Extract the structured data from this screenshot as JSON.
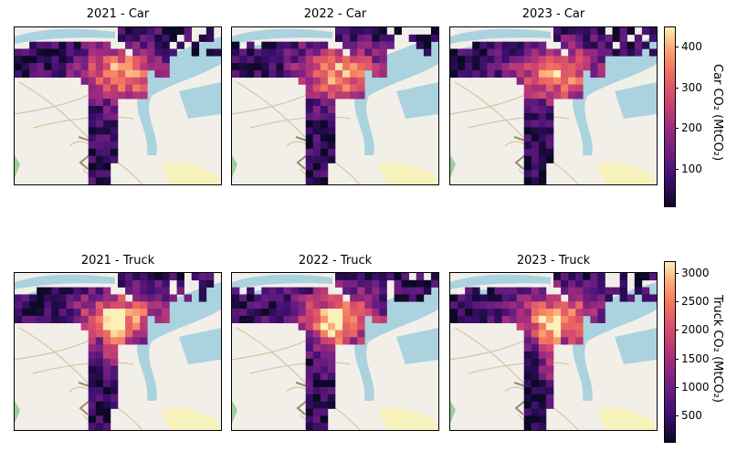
{
  "chart_data": [
    {
      "type": "heatmap",
      "title": "2021 - Car",
      "colorbar": "car"
    },
    {
      "type": "heatmap",
      "title": "2022 - Car",
      "colorbar": "car"
    },
    {
      "type": "heatmap",
      "title": "2023 - Car",
      "colorbar": "car"
    },
    {
      "type": "heatmap",
      "title": "2021 - Truck",
      "colorbar": "truck"
    },
    {
      "type": "heatmap",
      "title": "2022 - Truck",
      "colorbar": "truck"
    },
    {
      "type": "heatmap",
      "title": "2023 - Truck",
      "colorbar": "truck"
    }
  ],
  "colorbars": {
    "car": {
      "label": "Car CO₂ (MtCO₂)",
      "range": [
        10,
        450
      ],
      "ticks": [
        "100",
        "200",
        "300",
        "400"
      ],
      "tick_values": [
        100,
        200,
        300,
        400
      ]
    },
    "truck": {
      "label": "Truck CO₂ (MtCO₂)",
      "range": [
        60,
        3200
      ],
      "ticks": [
        "500",
        "1000",
        "1500",
        "2000",
        "2500",
        "3000"
      ],
      "tick_values": [
        500,
        1000,
        1500,
        2000,
        2500,
        3000
      ]
    }
  },
  "colors": {
    "water": "#aad3df",
    "land": "#f2efe9",
    "colormap": "magma"
  }
}
